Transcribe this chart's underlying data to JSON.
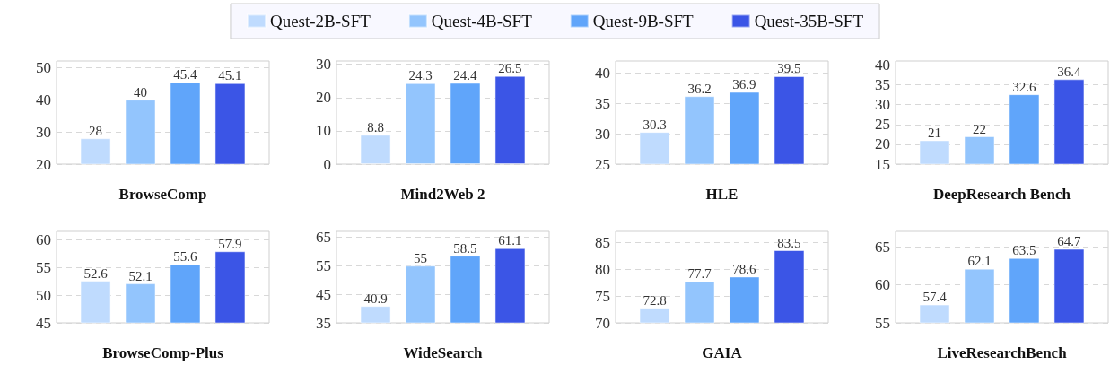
{
  "chart_data": [
    {
      "type": "bar",
      "xlabel": "BrowseComp",
      "categories": [
        null
      ],
      "ylim": [
        20,
        52
      ],
      "yticks": [
        20,
        30,
        40,
        50
      ],
      "grid": "y",
      "data_labels": true,
      "legend": "top",
      "series": [
        {
          "name": "Quest-2B-SFT",
          "color": "#bfdbfe",
          "values": [
            28
          ]
        },
        {
          "name": "Quest-4B-SFT",
          "color": "#93c5fd",
          "values": [
            40
          ]
        },
        {
          "name": "Quest-9B-SFT",
          "color": "#60a5fa",
          "values": [
            45.4
          ]
        },
        {
          "name": "Quest-35B-SFT",
          "color": "#3b55e6",
          "values": [
            45.1
          ]
        }
      ]
    },
    {
      "type": "bar",
      "xlabel": "Mind2Web 2",
      "categories": [
        null
      ],
      "ylim": [
        0,
        31
      ],
      "yticks": [
        0,
        10,
        20,
        30
      ],
      "grid": "y",
      "data_labels": true,
      "series": [
        {
          "color": "#bfdbfe",
          "values": [
            8.8
          ]
        },
        {
          "color": "#93c5fd",
          "values": [
            24.3
          ]
        },
        {
          "color": "#60a5fa",
          "values": [
            24.4
          ]
        },
        {
          "color": "#3b55e6",
          "values": [
            26.5
          ]
        }
      ]
    },
    {
      "type": "bar",
      "xlabel": "HLE",
      "categories": [
        null
      ],
      "ylim": [
        25,
        42
      ],
      "yticks": [
        25,
        30,
        35,
        40
      ],
      "grid": "y",
      "data_labels": true,
      "series": [
        {
          "color": "#bfdbfe",
          "values": [
            30.3
          ]
        },
        {
          "color": "#93c5fd",
          "values": [
            36.2
          ]
        },
        {
          "color": "#60a5fa",
          "values": [
            36.9
          ]
        },
        {
          "color": "#3b55e6",
          "values": [
            39.5
          ]
        }
      ]
    },
    {
      "type": "bar",
      "xlabel": "DeepResearch Bench",
      "categories": [
        null
      ],
      "ylim": [
        15,
        41
      ],
      "yticks": [
        15,
        20,
        25,
        30,
        35,
        40
      ],
      "grid": "y",
      "data_labels": true,
      "series": [
        {
          "color": "#bfdbfe",
          "values": [
            21
          ]
        },
        {
          "color": "#93c5fd",
          "values": [
            22
          ]
        },
        {
          "color": "#60a5fa",
          "values": [
            32.6
          ]
        },
        {
          "color": "#3b55e6",
          "values": [
            36.4
          ]
        }
      ]
    },
    {
      "type": "bar",
      "xlabel": "BrowseComp-Plus",
      "categories": [
        null
      ],
      "ylim": [
        45,
        61.5
      ],
      "yticks": [
        45,
        50,
        55,
        60
      ],
      "grid": "y",
      "data_labels": true,
      "series": [
        {
          "color": "#bfdbfe",
          "values": [
            52.6
          ]
        },
        {
          "color": "#93c5fd",
          "values": [
            52.1
          ]
        },
        {
          "color": "#60a5fa",
          "values": [
            55.6
          ]
        },
        {
          "color": "#3b55e6",
          "values": [
            57.9
          ]
        }
      ]
    },
    {
      "type": "bar",
      "xlabel": "WideSearch",
      "categories": [
        null
      ],
      "ylim": [
        35,
        67
      ],
      "yticks": [
        35,
        45,
        55,
        65
      ],
      "grid": "y",
      "data_labels": true,
      "series": [
        {
          "color": "#bfdbfe",
          "values": [
            40.9
          ]
        },
        {
          "color": "#93c5fd",
          "values": [
            55
          ]
        },
        {
          "color": "#60a5fa",
          "values": [
            58.5
          ]
        },
        {
          "color": "#3b55e6",
          "values": [
            61.1
          ]
        }
      ]
    },
    {
      "type": "bar",
      "xlabel": "GAIA",
      "categories": [
        null
      ],
      "ylim": [
        70,
        87
      ],
      "yticks": [
        70,
        75,
        80,
        85
      ],
      "grid": "y",
      "data_labels": true,
      "series": [
        {
          "color": "#bfdbfe",
          "values": [
            72.8
          ]
        },
        {
          "color": "#93c5fd",
          "values": [
            77.7
          ]
        },
        {
          "color": "#60a5fa",
          "values": [
            78.6
          ]
        },
        {
          "color": "#3b55e6",
          "values": [
            83.5
          ]
        }
      ]
    },
    {
      "type": "bar",
      "xlabel": "LiveResearchBench",
      "categories": [
        null
      ],
      "ylim": [
        55,
        67
      ],
      "yticks": [
        55,
        60,
        65
      ],
      "grid": "y",
      "data_labels": true,
      "series": [
        {
          "color": "#bfdbfe",
          "values": [
            57.4
          ]
        },
        {
          "color": "#93c5fd",
          "values": [
            62.1
          ]
        },
        {
          "color": "#60a5fa",
          "values": [
            63.5
          ]
        },
        {
          "color": "#3b55e6",
          "values": [
            64.7
          ]
        }
      ]
    }
  ]
}
